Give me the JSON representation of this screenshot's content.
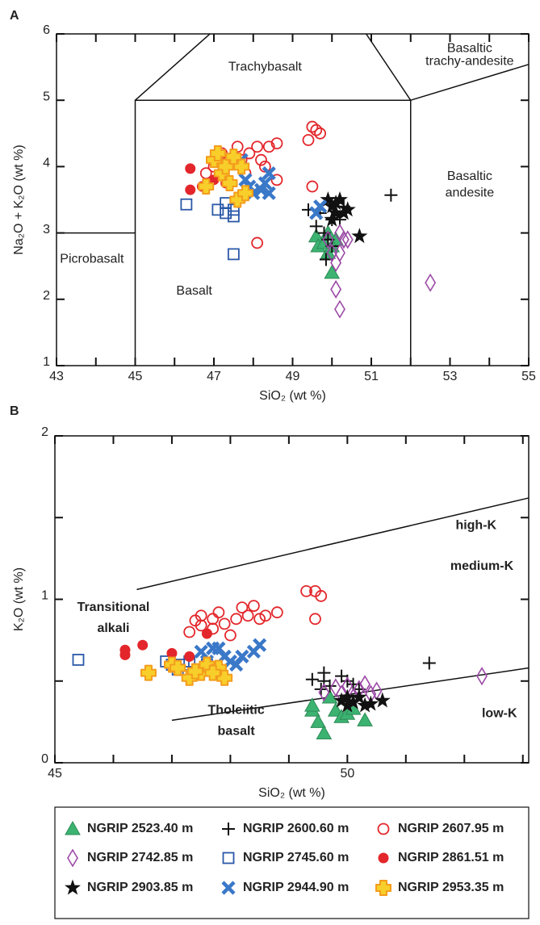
{
  "chart_data": [
    {
      "type": "scatter",
      "label": "A",
      "x_label": "SiO₂ (wt %)",
      "y_label": "Na₂O + K₂O (wt %)",
      "xlim": [
        43,
        55
      ],
      "ylim": [
        1,
        6
      ],
      "xticks": [
        43,
        45,
        47,
        49,
        51,
        53,
        55
      ],
      "xminor_ticks": [
        44,
        46,
        48,
        50,
        52,
        54
      ],
      "yticks": [
        1,
        2,
        3,
        4,
        5,
        6
      ],
      "boundaries": [
        {
          "x": [
            43,
            45
          ],
          "y": [
            3,
            3
          ]
        },
        {
          "x": [
            45,
            45,
            52,
            52
          ],
          "y": [
            1,
            5,
            5,
            1
          ]
        },
        {
          "x": [
            45,
            46.9
          ],
          "y": [
            5,
            6
          ]
        },
        {
          "x": [
            52,
            50.87
          ],
          "y": [
            5,
            6
          ]
        },
        {
          "x": [
            52,
            55
          ],
          "y": [
            5,
            5.54
          ]
        }
      ],
      "regions": [
        [
          "Trachybasalt"
        ],
        [
          "Basaltic",
          "trachy-andesite"
        ],
        [
          "Basaltic",
          "andesite"
        ],
        [
          "Picrobasalt"
        ],
        [
          "Basalt"
        ]
      ],
      "series": [
        {
          "name": "NGRIP 2523.40 m",
          "marker": "triangle",
          "color": "#3cb371",
          "x": [
            49.6,
            49.65,
            49.8,
            49.9,
            50.0,
            49.9,
            50.1,
            50.0
          ],
          "values": [
            2.95,
            2.8,
            2.85,
            2.7,
            2.4,
            3.0,
            2.9,
            2.8
          ]
        },
        {
          "name": "NGRIP 2600.60 m",
          "marker": "plus",
          "color": "#111111",
          "x": [
            49.4,
            49.6,
            49.7,
            49.8,
            49.85,
            49.9,
            50.0,
            50.1,
            50.2,
            50.3,
            51.5,
            50.0
          ],
          "values": [
            3.35,
            3.1,
            3.3,
            3.0,
            2.6,
            2.9,
            3.2,
            3.45,
            3.2,
            3.4,
            3.57,
            2.8
          ]
        },
        {
          "name": "NGRIP 2607.95 m",
          "marker": "circle-open",
          "color": "#e3262b",
          "x": [
            46.8,
            47.0,
            47.2,
            47.4,
            47.6,
            47.7,
            47.9,
            48.1,
            48.2,
            48.4,
            48.6,
            48.3,
            48.6,
            47.8,
            48.1,
            49.4,
            49.5,
            49.6,
            49.7,
            49.5
          ],
          "values": [
            3.9,
            4.0,
            4.2,
            4.05,
            4.3,
            4.1,
            4.2,
            4.3,
            4.1,
            4.3,
            4.35,
            4.0,
            3.8,
            3.9,
            2.85,
            4.4,
            4.6,
            4.55,
            4.5,
            3.7
          ]
        },
        {
          "name": "NGRIP 2742.85 m",
          "marker": "diamond-open",
          "color": "#9b4aa5",
          "x": [
            50.0,
            50.1,
            50.2,
            50.3,
            50.1,
            50.2,
            50.4,
            50.2,
            52.5,
            49.9
          ],
          "values": [
            2.7,
            2.55,
            2.7,
            2.9,
            2.15,
            1.85,
            2.9,
            3.0,
            2.25,
            2.9
          ]
        },
        {
          "name": "NGRIP 2745.60 m",
          "marker": "square-open",
          "color": "#2b58a8",
          "x": [
            46.3,
            47.1,
            47.3,
            47.3,
            47.5,
            47.5,
            47.5
          ],
          "values": [
            3.43,
            3.35,
            3.3,
            3.45,
            3.25,
            3.35,
            2.68
          ]
        },
        {
          "name": "NGRIP 2861.51 m",
          "marker": "circle",
          "color": "#e3262b",
          "x": [
            46.4,
            46.4,
            46.7,
            47.0,
            47.3
          ],
          "values": [
            3.97,
            3.65,
            3.7,
            3.8,
            3.75
          ]
        },
        {
          "name": "NGRIP 2903.85 m",
          "marker": "star",
          "color": "#111111",
          "x": [
            49.9,
            50.0,
            50.1,
            50.2,
            50.3,
            50.0,
            50.4,
            50.7,
            50.1
          ],
          "values": [
            3.5,
            3.4,
            3.3,
            3.5,
            3.3,
            3.2,
            3.35,
            2.95,
            3.45
          ]
        },
        {
          "name": "NGRIP 2944.90 m",
          "marker": "x",
          "color": "#3a78c8",
          "x": [
            47.5,
            47.7,
            47.8,
            47.9,
            48.0,
            48.2,
            48.3,
            48.4,
            48.4,
            49.6,
            49.7
          ],
          "values": [
            4.05,
            4.1,
            3.8,
            3.7,
            3.6,
            3.65,
            3.75,
            3.9,
            3.6,
            3.3,
            3.4
          ]
        },
        {
          "name": "NGRIP 2953.35 m",
          "marker": "cross",
          "color": "#f39c1e",
          "x": [
            46.8,
            47.0,
            47.1,
            47.2,
            47.3,
            47.4,
            47.6,
            47.7,
            47.8,
            47.5
          ],
          "values": [
            3.7,
            4.1,
            4.2,
            3.9,
            4.0,
            3.75,
            3.5,
            4.0,
            3.6,
            4.15
          ]
        }
      ]
    },
    {
      "type": "scatter",
      "label": "B",
      "x_label": "SiO₂ (wt %)",
      "y_label": "K₂O (wt %)",
      "xlim": [
        45,
        53.1
      ],
      "ylim": [
        0,
        2
      ],
      "xticks": [
        45,
        50
      ],
      "xminor_ticks": [
        46,
        47,
        48,
        49,
        51,
        52,
        53
      ],
      "yticks": [
        0,
        1,
        2
      ],
      "yminor_ticks": [
        0.5,
        1.5
      ],
      "boundaries": [
        {
          "x": [
            46.4,
            53.1
          ],
          "y": [
            1.06,
            1.62
          ]
        },
        {
          "x": [
            47,
            53.1
          ],
          "y": [
            0.26,
            0.58
          ]
        }
      ],
      "regions": [
        [
          "high-K"
        ],
        [
          "medium-K"
        ],
        [
          "low-K"
        ],
        [
          "Transitional",
          "alkali"
        ],
        [
          "Tholeiitic",
          "basalt"
        ]
      ],
      "series": [
        {
          "marker": "triangle",
          "color": "#3cb371",
          "x": [
            49.4,
            49.5,
            49.6,
            49.7,
            49.8,
            49.9,
            50.0,
            50.1,
            50.3,
            49.4
          ],
          "values": [
            0.32,
            0.25,
            0.18,
            0.4,
            0.32,
            0.28,
            0.3,
            0.33,
            0.26,
            0.35
          ]
        },
        {
          "marker": "plus",
          "color": "#111111",
          "x": [
            49.4,
            49.6,
            49.6,
            49.7,
            49.9,
            50.0,
            50.1,
            50.2,
            51.4,
            49.55
          ],
          "values": [
            0.51,
            0.55,
            0.5,
            0.47,
            0.53,
            0.5,
            0.48,
            0.45,
            0.61,
            0.45
          ]
        },
        {
          "marker": "circle-open",
          "color": "#e3262b",
          "x": [
            47.3,
            47.4,
            47.5,
            47.7,
            47.8,
            47.9,
            48.1,
            48.2,
            48.3,
            48.4,
            48.5,
            48.6,
            48.8,
            47.7,
            48.0,
            49.3,
            49.45,
            49.55,
            49.45,
            47.5
          ],
          "values": [
            0.8,
            0.87,
            0.9,
            0.88,
            0.92,
            0.85,
            0.88,
            0.95,
            0.9,
            0.96,
            0.88,
            0.9,
            0.92,
            0.82,
            0.78,
            1.05,
            1.05,
            1.02,
            0.88,
            0.84
          ]
        },
        {
          "marker": "diamond-open",
          "color": "#9b4aa5",
          "x": [
            49.6,
            49.8,
            49.9,
            50.0,
            50.2,
            50.3,
            50.4,
            50.5,
            52.3,
            50.1
          ],
          "values": [
            0.43,
            0.46,
            0.42,
            0.47,
            0.45,
            0.48,
            0.42,
            0.44,
            0.53,
            0.4
          ]
        },
        {
          "marker": "square-open",
          "color": "#2b58a8",
          "x": [
            45.4,
            46.9,
            47.0,
            47.2,
            47.3,
            47.1,
            47.6
          ],
          "values": [
            0.63,
            0.62,
            0.6,
            0.6,
            0.62,
            0.57,
            0.6
          ]
        },
        {
          "marker": "circle",
          "color": "#e3262b",
          "x": [
            46.2,
            46.2,
            46.5,
            47.0,
            47.3,
            47.6
          ],
          "values": [
            0.69,
            0.66,
            0.72,
            0.67,
            0.65,
            0.79
          ]
        },
        {
          "marker": "star",
          "color": "#111111",
          "x": [
            49.9,
            50.0,
            50.1,
            50.2,
            50.3,
            50.4,
            50.6,
            50.0
          ],
          "values": [
            0.38,
            0.35,
            0.37,
            0.4,
            0.35,
            0.36,
            0.38,
            0.4
          ]
        },
        {
          "marker": "x",
          "color": "#3a78c8",
          "x": [
            47.5,
            47.7,
            47.9,
            48.0,
            48.2,
            48.4,
            48.5,
            47.8,
            48.1,
            47.6
          ],
          "values": [
            0.68,
            0.7,
            0.65,
            0.62,
            0.65,
            0.68,
            0.72,
            0.7,
            0.6,
            0.62
          ]
        },
        {
          "marker": "cross",
          "color": "#f39c1e",
          "x": [
            46.6,
            47.0,
            47.1,
            47.3,
            47.5,
            47.6,
            47.8,
            47.9,
            47.4,
            47.7
          ],
          "values": [
            0.55,
            0.6,
            0.58,
            0.52,
            0.55,
            0.6,
            0.58,
            0.52,
            0.56,
            0.55
          ]
        }
      ]
    }
  ]
}
